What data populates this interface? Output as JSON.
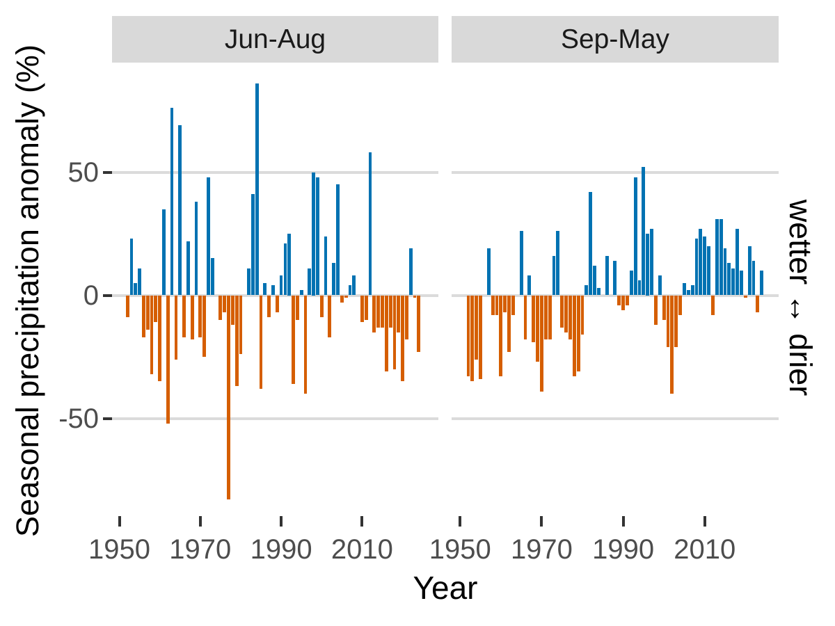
{
  "figure": {
    "y_axis": {
      "title": "Seasonal precipitation anomaly (%)"
    },
    "x_axis": {
      "title": "Year"
    },
    "right_axis": {
      "title": "wetter ↔ drier"
    },
    "facets": [
      {
        "label": "Jun-Aug"
      },
      {
        "label": "Sep-May"
      }
    ]
  },
  "chart_data": {
    "type": "bar",
    "title": "",
    "xlabel": "Year",
    "ylabel": "Seasonal precipitation anomaly (%)",
    "ylabel_right": "wetter ↔ drier",
    "facet_labels": [
      "Jun-Aug",
      "Sep-May"
    ],
    "x": [
      1952,
      1953,
      1954,
      1955,
      1956,
      1957,
      1958,
      1959,
      1960,
      1961,
      1962,
      1963,
      1964,
      1965,
      1966,
      1967,
      1968,
      1969,
      1970,
      1971,
      1972,
      1973,
      1974,
      1975,
      1976,
      1977,
      1978,
      1979,
      1980,
      1981,
      1982,
      1983,
      1984,
      1985,
      1986,
      1987,
      1988,
      1989,
      1990,
      1991,
      1992,
      1993,
      1994,
      1995,
      1996,
      1997,
      1998,
      1999,
      2000,
      2001,
      2002,
      2003,
      2004,
      2005,
      2006,
      2007,
      2008,
      2009,
      2010,
      2011,
      2012,
      2013,
      2014,
      2015,
      2016,
      2017,
      2018,
      2019,
      2020,
      2021,
      2022,
      2023,
      2024
    ],
    "series": [
      {
        "name": "Jun-Aug",
        "values": [
          -9,
          23,
          5,
          11,
          -17,
          -14,
          -32,
          -11,
          -35,
          35,
          -52,
          76,
          -26,
          69,
          -17,
          22,
          -18,
          38,
          -17,
          -25,
          48,
          15,
          0,
          -10,
          -7,
          -83,
          -12,
          -37,
          -24,
          0,
          11,
          41,
          86,
          -38,
          5,
          -9,
          4,
          -7,
          8,
          21,
          25,
          -36,
          -10,
          2,
          -40,
          11,
          50,
          48,
          -9,
          24,
          -17,
          13,
          45,
          -3,
          -1,
          4,
          8,
          0,
          -11,
          -10,
          58,
          -15,
          -13,
          -13,
          -31,
          -13,
          -30,
          -15,
          -35,
          -18,
          19,
          -1,
          -23
        ]
      },
      {
        "name": "Sep-May",
        "values": [
          -33,
          -35,
          -26,
          -34,
          0,
          19,
          -8,
          -8,
          -33,
          -7,
          -23,
          -8,
          0,
          26,
          -18,
          8,
          -19,
          -27,
          -39,
          -18,
          -18,
          16,
          26,
          -13,
          -15,
          -18,
          -33,
          -31,
          -16,
          4,
          42,
          12,
          3,
          0,
          16,
          0,
          14,
          -4,
          -6,
          -4,
          10,
          48,
          6,
          52,
          25,
          27,
          -12,
          8,
          -10,
          -21,
          -40,
          -21,
          -8,
          5,
          2,
          4,
          23,
          27,
          24,
          20,
          -8,
          31,
          31,
          19,
          13,
          11,
          27,
          10,
          -1,
          20,
          14,
          -7,
          10
        ]
      }
    ],
    "yticks": [
      50,
      0,
      -50
    ],
    "xticks": [
      1950,
      1970,
      1990,
      2010
    ],
    "ylim": [
      -94,
      94
    ],
    "grid": "horizontal-only",
    "legend": "none",
    "colors": {
      "positive_wetter": "#0072B2",
      "negative_drier": "#D55E00",
      "strip_background": "#D9D9D9",
      "gridline": "#DBDBDB",
      "axis_text": "#4D4D4D",
      "tick_mark": "#333333"
    }
  }
}
